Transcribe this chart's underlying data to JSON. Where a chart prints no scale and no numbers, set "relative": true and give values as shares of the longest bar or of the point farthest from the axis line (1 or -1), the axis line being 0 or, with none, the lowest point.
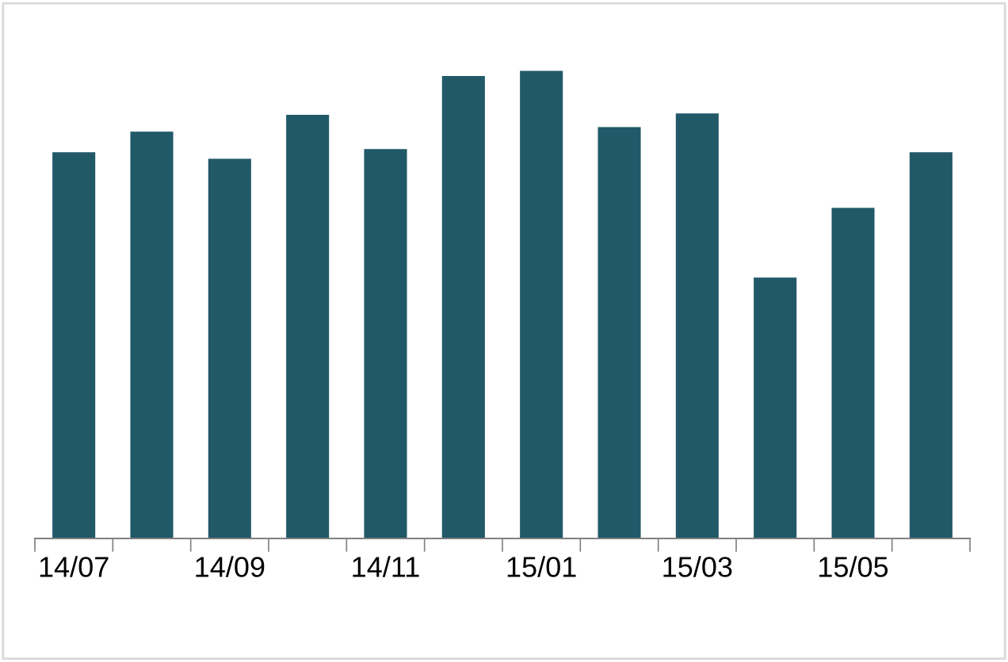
{
  "chart_data": {
    "type": "bar",
    "relative": true,
    "categories": [
      "14/07",
      null,
      "14/09",
      null,
      "14/11",
      null,
      "15/01",
      null,
      "15/03",
      null,
      "15/05",
      null
    ],
    "values": [
      0.826,
      0.87,
      0.812,
      0.906,
      0.833,
      0.989,
      1.0,
      0.88,
      0.909,
      0.558,
      0.707,
      0.826
    ],
    "color": "#215968",
    "grid": false,
    "legend": false
  }
}
